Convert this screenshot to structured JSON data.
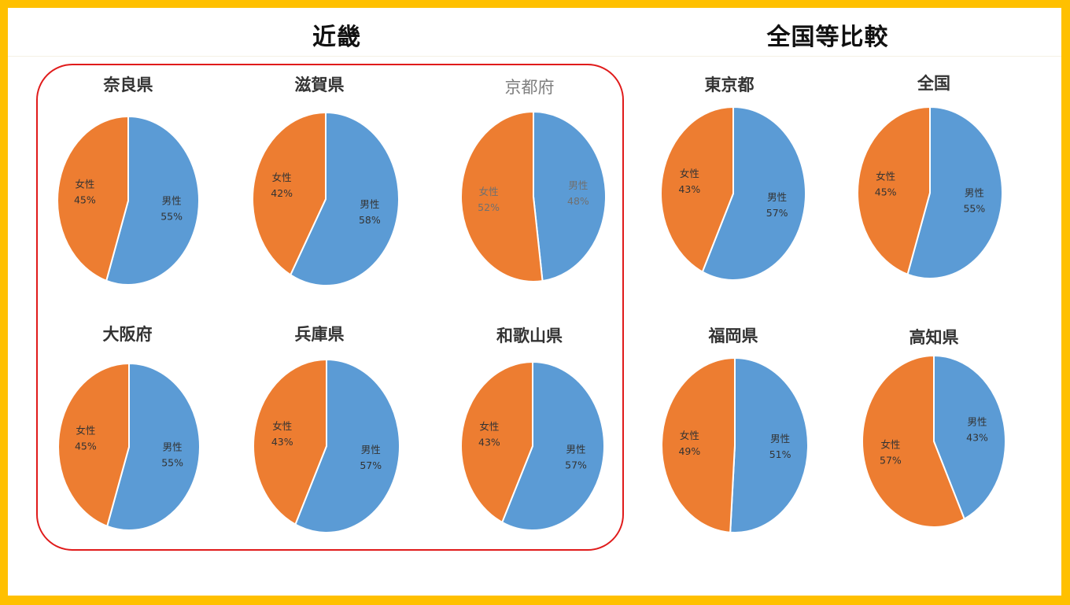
{
  "colors": {
    "male": "#5B9BD5",
    "female": "#ED7D31",
    "frame": "#FFC000",
    "group_border": "#E01B1B"
  },
  "headers": {
    "kinki": "近畿",
    "comparison": "全国等比較"
  },
  "chart_data": [
    {
      "type": "pie",
      "group": "kinki",
      "title": "奈良県",
      "labels": [
        "男性",
        "女性"
      ],
      "values": [
        55,
        45
      ],
      "data_labels": [
        "55%",
        "45%"
      ]
    },
    {
      "type": "pie",
      "group": "kinki",
      "title": "滋賀県",
      "labels": [
        "男性",
        "女性"
      ],
      "values": [
        58,
        42
      ],
      "data_labels": [
        "58%",
        "42%"
      ]
    },
    {
      "type": "pie",
      "group": "kinki",
      "title": "京都府",
      "labels": [
        "男性",
        "女性"
      ],
      "values": [
        48,
        52
      ],
      "data_labels": [
        "48%",
        "52%"
      ],
      "style": "light"
    },
    {
      "type": "pie",
      "group": "kinki",
      "title": "大阪府",
      "labels": [
        "男性",
        "女性"
      ],
      "values": [
        55,
        45
      ],
      "data_labels": [
        "55%",
        "45%"
      ]
    },
    {
      "type": "pie",
      "group": "kinki",
      "title": "兵庫県",
      "labels": [
        "男性",
        "女性"
      ],
      "values": [
        57,
        43
      ],
      "data_labels": [
        "57%",
        "43%"
      ]
    },
    {
      "type": "pie",
      "group": "kinki",
      "title": "和歌山県",
      "labels": [
        "男性",
        "女性"
      ],
      "values": [
        57,
        43
      ],
      "data_labels": [
        "57%",
        "43%"
      ]
    },
    {
      "type": "pie",
      "group": "comparison",
      "title": "東京都",
      "labels": [
        "男性",
        "女性"
      ],
      "values": [
        57,
        43
      ],
      "data_labels": [
        "57%",
        "43%"
      ]
    },
    {
      "type": "pie",
      "group": "comparison",
      "title": "全国",
      "labels": [
        "男性",
        "女性"
      ],
      "values": [
        55,
        45
      ],
      "data_labels": [
        "55%",
        "45%"
      ]
    },
    {
      "type": "pie",
      "group": "comparison",
      "title": "福岡県",
      "labels": [
        "男性",
        "女性"
      ],
      "values": [
        51,
        49
      ],
      "data_labels": [
        "51%",
        "49%"
      ]
    },
    {
      "type": "pie",
      "group": "comparison",
      "title": "高知県",
      "labels": [
        "男性",
        "女性"
      ],
      "values": [
        43,
        57
      ],
      "data_labels": [
        "43%",
        "57%"
      ]
    }
  ]
}
